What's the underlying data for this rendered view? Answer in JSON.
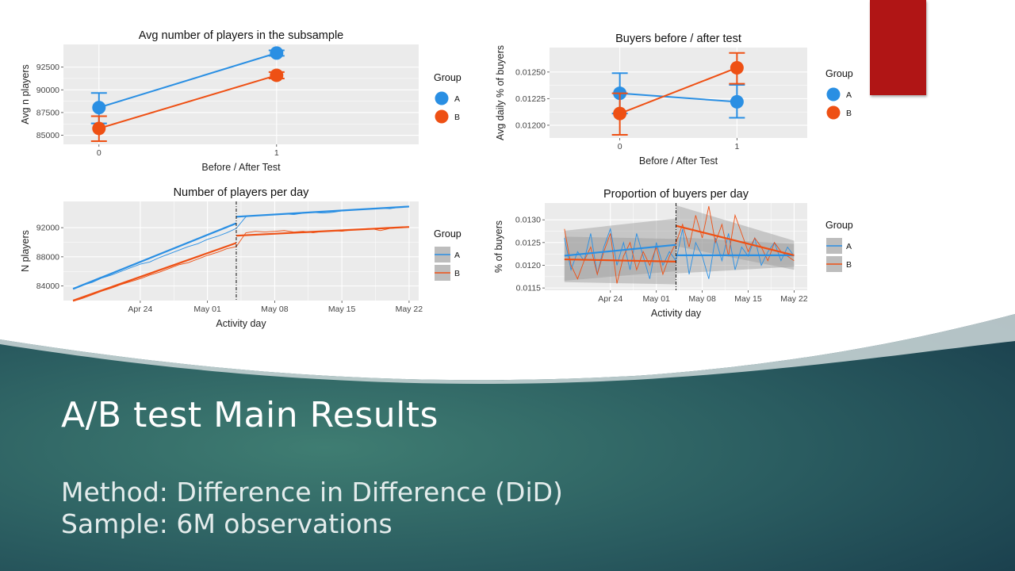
{
  "slide": {
    "title": "A/B test Main Results",
    "method_line": "Method: Difference in Difference (DiD)",
    "sample_line": "Sample: 6M observations",
    "colors": {
      "group_a": "#2a8fe3",
      "group_b": "#ee5014",
      "panel_bg": "#ebebeb",
      "accent_rect": "#b01515",
      "band_dark": "#1e4a55",
      "band_mid": "#3d7a70"
    }
  },
  "chart_data": [
    {
      "type": "line",
      "title": "Avg number of players in the subsample",
      "xlabel": "Before / After Test",
      "ylabel": "Avg n players",
      "x": [
        0,
        1
      ],
      "xticks": [
        "0",
        "1"
      ],
      "xlim": [
        -0.2,
        1.8
      ],
      "ylim": [
        84000,
        95000
      ],
      "yticks": [
        85000,
        87500,
        90000,
        92500
      ],
      "ytick_labels": [
        "85000",
        "87500",
        "90000",
        "92500"
      ],
      "legend": {
        "title": "Group",
        "entries": [
          "A",
          "B"
        ],
        "placement": "right"
      },
      "series": [
        {
          "name": "A",
          "values": [
            88050,
            94050
          ],
          "err_low": [
            86300,
            93750
          ],
          "err_high": [
            89650,
            94350
          ]
        },
        {
          "name": "B",
          "values": [
            85750,
            91600
          ],
          "err_low": [
            84350,
            91250
          ],
          "err_high": [
            87100,
            91950
          ]
        }
      ]
    },
    {
      "type": "line",
      "title": "Buyers before / after test",
      "xlabel": "Before / After Test",
      "ylabel": "Avg daily % of buyers",
      "x": [
        0,
        1
      ],
      "xticks": [
        "0",
        "1"
      ],
      "xlim": [
        -0.6,
        1.6
      ],
      "ylim": [
        0.01188,
        0.01273
      ],
      "yticks": [
        0.012,
        0.01225,
        0.0125
      ],
      "ytick_labels": [
        "0.01200",
        "0.01225",
        "0.01250"
      ],
      "legend": {
        "title": "Group",
        "entries": [
          "A",
          "B"
        ],
        "placement": "right"
      },
      "series": [
        {
          "name": "A",
          "values": [
            0.0123,
            0.01222
          ],
          "err_low": [
            0.01211,
            0.01207
          ],
          "err_high": [
            0.01249,
            0.01238
          ]
        },
        {
          "name": "B",
          "values": [
            0.01211,
            0.01254
          ],
          "err_low": [
            0.01191,
            0.01239
          ],
          "err_high": [
            0.0123,
            0.01268
          ]
        }
      ]
    },
    {
      "type": "line",
      "title": "Number of players per day",
      "xlabel": "Activity day",
      "ylabel": "N players",
      "x_dates": [
        "2021-04-17",
        "2021-04-18",
        "2021-04-19",
        "2021-04-20",
        "2021-04-21",
        "2021-04-22",
        "2021-04-23",
        "2021-04-24",
        "2021-04-25",
        "2021-04-26",
        "2021-04-27",
        "2021-04-28",
        "2021-04-29",
        "2021-04-30",
        "2021-05-01",
        "2021-05-02",
        "2021-05-03",
        "2021-05-04",
        "2021-05-05",
        "2021-05-06",
        "2021-05-07",
        "2021-05-08",
        "2021-05-09",
        "2021-05-10",
        "2021-05-11",
        "2021-05-12",
        "2021-05-13",
        "2021-05-14",
        "2021-05-15",
        "2021-05-16",
        "2021-05-17",
        "2021-05-18",
        "2021-05-19",
        "2021-05-20",
        "2021-05-21",
        "2021-05-22"
      ],
      "xticks": [
        "Apr 24",
        "May 01",
        "May 08",
        "May 15",
        "May 22"
      ],
      "xtick_dates": [
        "2021-04-24",
        "2021-05-01",
        "2021-05-08",
        "2021-05-15",
        "2021-05-22"
      ],
      "xlim": [
        "2021-04-16",
        "2021-05-23"
      ],
      "ylim": [
        82000,
        95600
      ],
      "yticks": [
        84000,
        88000,
        92000
      ],
      "ytick_labels": [
        "84000",
        "88000",
        "92000"
      ],
      "vline_date": "2021-05-04",
      "legend": {
        "title": "Group",
        "entries": [
          "A",
          "B"
        ],
        "placement": "right"
      },
      "series": [
        {
          "name": "A",
          "values": [
            83700,
            84100,
            84500,
            85100,
            85500,
            86000,
            86500,
            87000,
            87300,
            87900,
            88400,
            88900,
            89400,
            89800,
            90400,
            90800,
            91300,
            91900,
            93500,
            93700,
            93700,
            93800,
            93900,
            93800,
            94000,
            94100,
            94000,
            94100,
            94300,
            94400,
            94500,
            94600,
            94700,
            94600,
            94800,
            94900
          ],
          "fit_pre": [
            83600,
            92600
          ],
          "fit_post": [
            93500,
            94900
          ]
        },
        {
          "name": "B",
          "values": [
            81900,
            82300,
            82800,
            83300,
            83700,
            84200,
            84600,
            85000,
            85500,
            85900,
            86400,
            86900,
            87200,
            87700,
            88200,
            88600,
            89100,
            89400,
            91300,
            91500,
            91400,
            91500,
            91600,
            91400,
            91500,
            91300,
            91500,
            91600,
            91500,
            91700,
            91800,
            91900,
            91600,
            91900,
            92000,
            92100
          ],
          "fit_pre": [
            82000,
            89900
          ],
          "fit_post": [
            90900,
            92100
          ]
        }
      ]
    },
    {
      "type": "line",
      "title": "Proportion of buyers per day",
      "xlabel": "Activity day",
      "ylabel": "% of buyers",
      "x_dates": [
        "2021-04-17",
        "2021-04-18",
        "2021-04-19",
        "2021-04-20",
        "2021-04-21",
        "2021-04-22",
        "2021-04-23",
        "2021-04-24",
        "2021-04-25",
        "2021-04-26",
        "2021-04-27",
        "2021-04-28",
        "2021-04-29",
        "2021-04-30",
        "2021-05-01",
        "2021-05-02",
        "2021-05-03",
        "2021-05-04",
        "2021-05-05",
        "2021-05-06",
        "2021-05-07",
        "2021-05-08",
        "2021-05-09",
        "2021-05-10",
        "2021-05-11",
        "2021-05-12",
        "2021-05-13",
        "2021-05-14",
        "2021-05-15",
        "2021-05-16",
        "2021-05-17",
        "2021-05-18",
        "2021-05-19",
        "2021-05-20",
        "2021-05-21",
        "2021-05-22"
      ],
      "xticks": [
        "Apr 24",
        "May 01",
        "May 08",
        "May 15",
        "May 22"
      ],
      "xtick_dates": [
        "2021-04-24",
        "2021-05-01",
        "2021-05-08",
        "2021-05-15",
        "2021-05-22"
      ],
      "xlim": [
        "2021-04-14",
        "2021-05-24"
      ],
      "ylim": [
        0.01145,
        0.01337
      ],
      "yticks": [
        0.0115,
        0.012,
        0.0125,
        0.013
      ],
      "ytick_labels": [
        "0.0115",
        "0.0120",
        "0.0125",
        "0.0130"
      ],
      "vline_date": "2021-05-04",
      "legend": {
        "title": "Group",
        "entries": [
          "A",
          "B"
        ],
        "placement": "right"
      },
      "series": [
        {
          "name": "A",
          "values": [
            0.0126,
            0.0119,
            0.0123,
            0.0121,
            0.0127,
            0.0118,
            0.0124,
            0.0128,
            0.012,
            0.0125,
            0.0119,
            0.0127,
            0.0122,
            0.0117,
            0.0125,
            0.012,
            0.0123,
            0.0121,
            0.0128,
            0.0118,
            0.0125,
            0.0122,
            0.0117,
            0.0126,
            0.0121,
            0.0127,
            0.0119,
            0.0124,
            0.0122,
            0.0126,
            0.012,
            0.0123,
            0.0125,
            0.0121,
            0.0124,
            0.0122
          ],
          "fit_pre": [
            0.01221,
            0.01245
          ],
          "fit_post": [
            0.01222,
            0.01222
          ],
          "band_pre": [
            0.00055,
            0.00058
          ],
          "band_post": [
            0.0004,
            0.00025
          ]
        },
        {
          "name": "B",
          "values": [
            0.0128,
            0.012,
            0.0117,
            0.0121,
            0.0124,
            0.0118,
            0.0123,
            0.0127,
            0.0116,
            0.0122,
            0.0125,
            0.0119,
            0.0123,
            0.012,
            0.0124,
            0.0118,
            0.0122,
            0.0125,
            0.0129,
            0.0124,
            0.0131,
            0.0126,
            0.0133,
            0.0125,
            0.0129,
            0.0122,
            0.0131,
            0.0127,
            0.0123,
            0.0126,
            0.0124,
            0.0121,
            0.0125,
            0.0123,
            0.0122,
            0.0121
          ],
          "fit_pre": [
            0.01213,
            0.01208
          ],
          "fit_post": [
            0.01287,
            0.01222
          ],
          "band_pre": [
            0.0005,
            0.0005
          ],
          "band_post": [
            0.00045,
            0.00032
          ]
        }
      ]
    }
  ]
}
